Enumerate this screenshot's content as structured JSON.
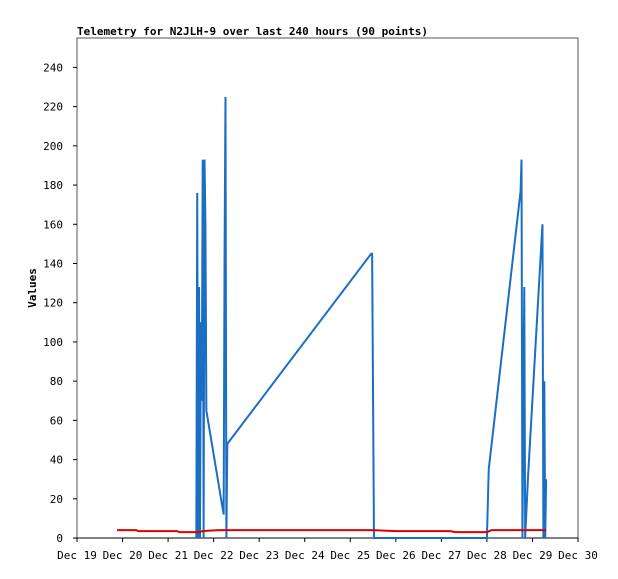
{
  "chart_data": {
    "type": "line",
    "title": "Telemetry for N2JLH-9 over last 240 hours (90 points)",
    "y_label": "Values",
    "xlim": [
      19,
      30
    ],
    "xticks": [
      {
        "value": 19,
        "label": "Dec 19"
      },
      {
        "value": 20,
        "label": "Dec 20"
      },
      {
        "value": 21,
        "label": "Dec 21"
      },
      {
        "value": 22,
        "label": "Dec 22"
      },
      {
        "value": 23,
        "label": "Dec 23"
      },
      {
        "value": 24,
        "label": "Dec 24"
      },
      {
        "value": 25,
        "label": "Dec 25"
      },
      {
        "value": 26,
        "label": "Dec 26"
      },
      {
        "value": 27,
        "label": "Dec 27"
      },
      {
        "value": 28,
        "label": "Dec 28"
      },
      {
        "value": 29,
        "label": "Dec 29"
      },
      {
        "value": 30,
        "label": "Dec 30"
      }
    ],
    "ylim": [
      0,
      255
    ],
    "yticks": [
      0,
      20,
      40,
      60,
      80,
      100,
      120,
      140,
      160,
      180,
      200,
      220,
      240
    ],
    "series": [
      {
        "color": "#1a6fc4",
        "x": [
          21.62,
          21.64,
          21.66,
          21.68,
          21.7,
          21.72,
          21.74,
          21.76,
          21.78,
          21.8,
          21.82,
          21.84,
          22.22,
          22.24,
          22.26,
          22.28,
          22.3,
          25.46,
          25.48,
          25.5,
          25.52,
          28.0,
          28.04,
          28.74,
          28.76,
          28.78,
          28.82,
          28.84,
          28.9,
          29.22,
          29.24,
          29.26,
          29.28,
          29.3
        ],
        "values": [
          0,
          176,
          0,
          128,
          0,
          110,
          70,
          193,
          0,
          193,
          160,
          65,
          12,
          145,
          225,
          0,
          48,
          145,
          145,
          73,
          0,
          0,
          35,
          177,
          193,
          0,
          128,
          0,
          30,
          160,
          0,
          80,
          0,
          30
        ]
      },
      {
        "color": "#e00000",
        "x": [
          19.88,
          20.3,
          20.35,
          21.2,
          21.25,
          21.7,
          21.75,
          22.1,
          25.5,
          26.0,
          27.2,
          27.3,
          28.0,
          28.1,
          29.3
        ],
        "values": [
          4,
          4,
          3.5,
          3.5,
          3,
          3,
          3.5,
          4,
          4,
          3.5,
          3.5,
          3,
          3,
          4,
          4
        ]
      }
    ]
  }
}
